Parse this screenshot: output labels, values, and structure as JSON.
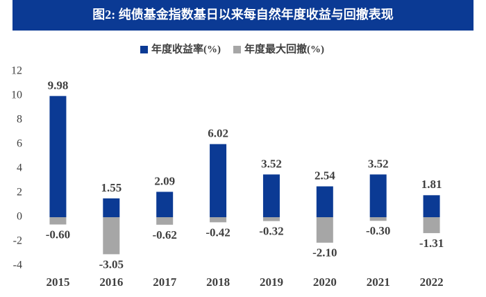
{
  "chart_data": {
    "type": "bar",
    "title": "图2: 纯债基金指数基日以来每自然年度收益与回撤表现",
    "categories": [
      "2015",
      "2016",
      "2017",
      "2018",
      "2019",
      "2020",
      "2021",
      "2022"
    ],
    "series": [
      {
        "name": "年度收益率(%)",
        "color": "#0b3a94",
        "values": [
          9.98,
          1.55,
          2.09,
          6.02,
          3.52,
          2.54,
          3.52,
          1.81
        ],
        "value_labels": [
          "9.98",
          "1.55",
          "2.09",
          "6.02",
          "3.52",
          "2.54",
          "3.52",
          "1.81"
        ]
      },
      {
        "name": "年度最大回撤(%)",
        "color": "#a6a6a6",
        "values": [
          -0.6,
          -3.05,
          -0.62,
          -0.42,
          -0.32,
          -2.1,
          -0.3,
          -1.31
        ],
        "value_labels": [
          "-0.60",
          "-3.05",
          "-0.62",
          "-0.42",
          "-0.32",
          "-2.10",
          "-0.30",
          "-1.31"
        ]
      }
    ],
    "ylim": [
      -4,
      12
    ],
    "yticks": [
      -4,
      -2,
      0,
      2,
      4,
      6,
      8,
      10,
      12
    ],
    "grid": false,
    "legend": "top"
  }
}
